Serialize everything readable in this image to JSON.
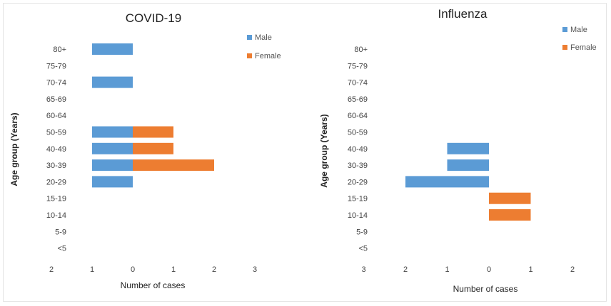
{
  "colors": {
    "male": "#5b9bd5",
    "female": "#ed7d31"
  },
  "chart_data": [
    {
      "type": "bar",
      "orientation": "horizontal-population-pyramid",
      "title": "COVID-19",
      "ylabel": "Age group (Years)",
      "xlabel": "Number of cases",
      "categories": [
        "80+",
        "75-79",
        "70-74",
        "65-69",
        "60-64",
        "50-59",
        "40-49",
        "30-39",
        "20-29",
        "15-19",
        "10-14",
        "5-9",
        "<5"
      ],
      "x_tick_labels": [
        "2",
        "1",
        "0",
        "1",
        "2",
        "3"
      ],
      "xlim_male": [
        0,
        2
      ],
      "xlim_female": [
        0,
        3
      ],
      "legend_position": "top-right",
      "grid": false,
      "series": [
        {
          "name": "Male",
          "values": [
            1,
            0,
            1,
            0,
            0,
            1,
            1,
            1,
            1,
            0,
            0,
            0,
            0
          ]
        },
        {
          "name": "Female",
          "values": [
            0,
            0,
            0,
            0,
            0,
            1,
            1,
            2,
            0,
            0,
            0,
            0,
            0
          ]
        }
      ]
    },
    {
      "type": "bar",
      "orientation": "horizontal-population-pyramid",
      "title": "Influenza",
      "ylabel": "Age group (Years)",
      "xlabel": "Number of cases",
      "categories": [
        "80+",
        "75-79",
        "70-74",
        "65-69",
        "60-64",
        "50-59",
        "40-49",
        "30-39",
        "20-29",
        "15-19",
        "10-14",
        "5-9",
        "<5"
      ],
      "x_tick_labels": [
        "3",
        "2",
        "1",
        "0",
        "1",
        "2"
      ],
      "xlim_male": [
        0,
        3
      ],
      "xlim_female": [
        0,
        2
      ],
      "legend_position": "top-right",
      "grid": false,
      "series": [
        {
          "name": "Male",
          "values": [
            0,
            0,
            0,
            0,
            0,
            0,
            1,
            1,
            2,
            0,
            0,
            0,
            0
          ]
        },
        {
          "name": "Female",
          "values": [
            0,
            0,
            0,
            0,
            0,
            0,
            0,
            0,
            0,
            1,
            1,
            0,
            0
          ]
        }
      ]
    }
  ]
}
